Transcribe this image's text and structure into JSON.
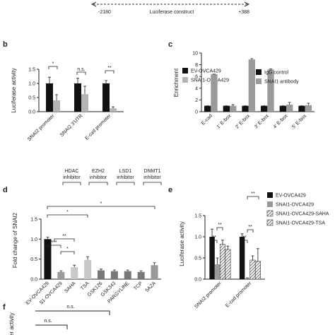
{
  "construct": {
    "start": "-2180",
    "label": "Luciferase construct",
    "end": "+388"
  },
  "chart_data": [
    {
      "type": "bar",
      "panel": "b",
      "y_label": "Luciferase activity",
      "categories": [
        "SNAI2 promoter",
        "SNAI2 3'UTR",
        "E-cad promoter"
      ],
      "series": [
        {
          "name": "EV-OVCA429",
          "color": "#111111",
          "values": [
            1.0,
            1.0,
            1.0
          ],
          "errors": [
            0.22,
            0.18,
            0.1
          ]
        },
        {
          "name": "SNAI1-OVCA429",
          "color": "#b5b5b5",
          "values": [
            0.4,
            0.62,
            0.12
          ],
          "errors": [
            0.2,
            0.28,
            0.05
          ]
        }
      ],
      "ylim": [
        0,
        1.5
      ],
      "yticks": [
        {
          "value": 0,
          "label": "0.0"
        },
        {
          "value": 0.5,
          "label": "0.5"
        },
        {
          "value": 1,
          "label": "1.0"
        },
        {
          "value": 1.5,
          "label": "1.5"
        }
      ],
      "annotations": [
        "*",
        "n.s.",
        "**"
      ]
    },
    {
      "type": "bar",
      "panel": "c",
      "y_label": "Enrichment",
      "categories": [
        "E-cad",
        "1' E-box",
        "2' E-box",
        "3' E-box",
        "4' E-box",
        "5' E-box"
      ],
      "series": [
        {
          "name": "IgG control",
          "color": "#111111",
          "values": [
            1,
            1,
            1,
            1,
            1,
            1
          ],
          "errors": [
            0,
            0,
            0,
            0,
            0,
            0
          ]
        },
        {
          "name": "SNAI1 antibody",
          "color": "#9a9a9a",
          "values": [
            6.4,
            1.0,
            8.9,
            7.2,
            1.2,
            1.1
          ],
          "errors": [
            0,
            0.2,
            0.15,
            0.1,
            0.4,
            0.35
          ]
        }
      ],
      "ylim": [
        0,
        10
      ],
      "yticks": [
        0,
        2,
        4,
        6,
        8,
        10
      ]
    },
    {
      "type": "bar",
      "panel": "d",
      "y_label": "Fold change of SNAI2",
      "categories": [
        "EV-OVCA429",
        "S1-OVCA429",
        "SAHA",
        "TSA",
        "GSK126",
        "GSK343",
        "PARGYLINE",
        "TCP",
        "5AZA"
      ],
      "values": [
        1.0,
        0.18,
        0.3,
        0.48,
        0.22,
        0.2,
        0.2,
        0.18,
        0.35
      ],
      "errors": [
        0.05,
        0.03,
        0.05,
        0.08,
        0.03,
        0.03,
        0.03,
        0.03,
        0.06
      ],
      "colors": [
        "#111111",
        "#9a9a9a",
        "#c8c8c8",
        "#c8c8c8",
        "#777777",
        "#777777",
        "#777777",
        "#777777",
        "#9a9a9a"
      ],
      "groups": [
        [
          "HDAC",
          "inhibitor"
        ],
        [
          "EZH2",
          "inhibitor"
        ],
        [
          "LSD1",
          "inhibitor"
        ],
        [
          "DNMT1",
          "inhibitor"
        ]
      ],
      "ylim": [
        0,
        1.5
      ],
      "yticks": [
        {
          "value": 0,
          "label": "0.0"
        },
        {
          "value": 0.5,
          "label": "0.5"
        },
        {
          "value": 1,
          "label": "1.0"
        },
        {
          "value": 1.5,
          "label": "1.5"
        }
      ],
      "annotations": [
        "*",
        "*",
        "***",
        "**",
        "*"
      ]
    },
    {
      "type": "bar",
      "panel": "e",
      "y_label": "Luciferase activity",
      "categories": [
        "SNAI2 promoter",
        "E-cad promoter"
      ],
      "series": [
        {
          "name": "EV-OVCA429",
          "color": "#111111",
          "values": [
            1.0,
            1.0
          ],
          "errors": [
            0.18,
            0.07
          ]
        },
        {
          "name": "SNAI1-OVCA429",
          "color": "#9a9a9a",
          "values": [
            0.35,
            0.02
          ],
          "errors": [
            0.15,
            0.01
          ]
        },
        {
          "name": "SNAI1-OVCA429-SAHA",
          "color": "#555555",
          "pattern": "hatch",
          "values": [
            0.82,
            0.45
          ],
          "errors": [
            0.1,
            0.1
          ]
        },
        {
          "name": "SNAI1-OVCA429-TSA",
          "color": "#555555",
          "pattern": "hatch",
          "values": [
            0.7,
            0.42
          ],
          "errors": [
            0.08,
            0.3
          ]
        }
      ],
      "ylim": [
        0,
        1.5
      ],
      "yticks": [
        {
          "value": 0,
          "label": "0.0"
        },
        {
          "value": 0.5,
          "label": "0.5"
        },
        {
          "value": 1,
          "label": "1.0"
        },
        {
          "value": 1.5,
          "label": "1.5"
        }
      ],
      "annotations": [
        "**",
        "**",
        "**",
        "**",
        "**"
      ]
    }
  ],
  "panel_f": {
    "panel": "f",
    "y_label": "er activity",
    "annotations": [
      "n.s.",
      "n.s."
    ]
  }
}
